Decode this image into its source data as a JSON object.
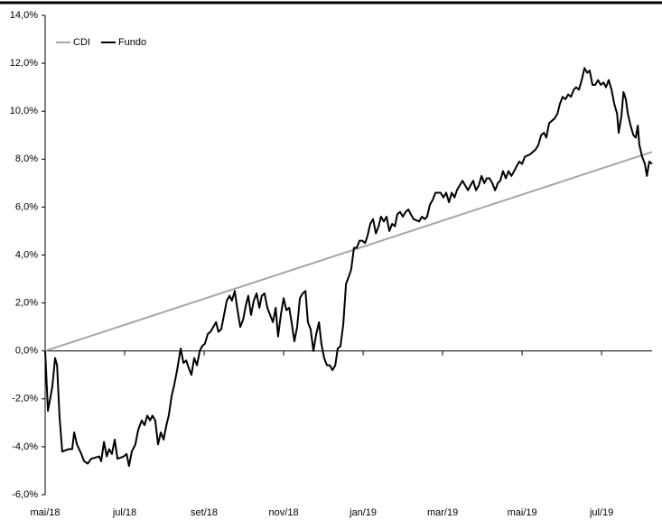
{
  "chart_data": {
    "type": "line",
    "xlim": [
      0,
      15.27
    ],
    "ylim": [
      -6,
      14
    ],
    "xticks": [
      {
        "value": 0,
        "label": "mai/18"
      },
      {
        "value": 2,
        "label": "jul/18"
      },
      {
        "value": 4,
        "label": "set/18"
      },
      {
        "value": 6,
        "label": "nov/18"
      },
      {
        "value": 8,
        "label": "jan/19"
      },
      {
        "value": 10,
        "label": "mar/19"
      },
      {
        "value": 12,
        "label": "mai/19"
      },
      {
        "value": 14,
        "label": "jul/19"
      }
    ],
    "yticks": [
      {
        "value": -6,
        "label": "-6,0%"
      },
      {
        "value": -4,
        "label": "-4,0%"
      },
      {
        "value": -2,
        "label": "-2,0%"
      },
      {
        "value": 0,
        "label": "0,0%"
      },
      {
        "value": 2,
        "label": "2,0%"
      },
      {
        "value": 4,
        "label": "4,0%"
      },
      {
        "value": 6,
        "label": "6,0%"
      },
      {
        "value": 8,
        "label": "8,0%"
      },
      {
        "value": 10,
        "label": "10,0%"
      },
      {
        "value": 12,
        "label": "12,0%"
      },
      {
        "value": 14,
        "label": "14,0%"
      }
    ],
    "legend": "top-left",
    "series": [
      {
        "name": "CDI",
        "color": "#a6a6a6",
        "x": [
          0,
          15.27
        ],
        "values": [
          0,
          8.3
        ]
      },
      {
        "name": "Fundo",
        "color": "#000000",
        "x": [
          0,
          0.07,
          0.18,
          0.25,
          0.3,
          0.36,
          0.43,
          0.59,
          0.68,
          0.73,
          0.8,
          0.91,
          0.98,
          1.07,
          1.16,
          1.36,
          1.41,
          1.48,
          1.55,
          1.61,
          1.68,
          1.75,
          1.82,
          1.98,
          2.05,
          2.11,
          2.18,
          2.27,
          2.34,
          2.43,
          2.5,
          2.57,
          2.64,
          2.7,
          2.77,
          2.84,
          2.91,
          2.98,
          3.05,
          3.11,
          3.18,
          3.25,
          3.32,
          3.41,
          3.48,
          3.55,
          3.61,
          3.68,
          3.75,
          3.82,
          3.89,
          3.95,
          4.02,
          4.09,
          4.16,
          4.23,
          4.3,
          4.36,
          4.43,
          4.5,
          4.57,
          4.64,
          4.7,
          4.77,
          4.84,
          4.91,
          4.98,
          5.05,
          5.11,
          5.18,
          5.25,
          5.32,
          5.39,
          5.45,
          5.52,
          5.59,
          5.66,
          5.73,
          5.8,
          5.86,
          5.93,
          6.0,
          6.07,
          6.14,
          6.2,
          6.27,
          6.34,
          6.41,
          6.48,
          6.55,
          6.61,
          6.68,
          6.75,
          6.82,
          6.89,
          6.95,
          7.02,
          7.09,
          7.16,
          7.23,
          7.3,
          7.36,
          7.43,
          7.5,
          7.57,
          7.64,
          7.7,
          7.77,
          7.84,
          7.91,
          7.98,
          8.05,
          8.11,
          8.18,
          8.25,
          8.32,
          8.39,
          8.45,
          8.52,
          8.59,
          8.66,
          8.73,
          8.8,
          8.86,
          8.93,
          9.0,
          9.07,
          9.14,
          9.2,
          9.27,
          9.41,
          9.48,
          9.55,
          9.61,
          9.68,
          9.75,
          9.82,
          9.89,
          9.95,
          10.02,
          10.09,
          10.16,
          10.23,
          10.3,
          10.36,
          10.43,
          10.5,
          10.57,
          10.64,
          10.7,
          10.77,
          10.84,
          10.91,
          10.98,
          11.05,
          11.11,
          11.18,
          11.25,
          11.32,
          11.39,
          11.45,
          11.52,
          11.59,
          11.66,
          11.73,
          11.8,
          11.86,
          11.93,
          12.0,
          12.07,
          12.2,
          12.34,
          12.41,
          12.48,
          12.55,
          12.61,
          12.68,
          12.75,
          12.82,
          12.89,
          12.95,
          13.02,
          13.09,
          13.16,
          13.23,
          13.3,
          13.36,
          13.43,
          13.5,
          13.57,
          13.64,
          13.7,
          13.77,
          13.84,
          13.91,
          13.98,
          14.05,
          14.11,
          14.18,
          14.25,
          14.32,
          14.39,
          14.43,
          14.5,
          14.55,
          14.61,
          14.66,
          14.73,
          14.8,
          14.86,
          14.91,
          14.95,
          15.02,
          15.09,
          15.14,
          15.2,
          15.27
        ],
        "values": [
          0,
          -2.5,
          -1.5,
          -0.3,
          -0.6,
          -2.7,
          -4.2,
          -4.1,
          -4.1,
          -3.4,
          -3.9,
          -4.3,
          -4.6,
          -4.7,
          -4.5,
          -4.4,
          -4.6,
          -3.8,
          -4.4,
          -4.1,
          -4.3,
          -3.7,
          -4.5,
          -4.4,
          -4.3,
          -4.8,
          -4.2,
          -3.9,
          -3.3,
          -2.9,
          -3.1,
          -2.7,
          -2.9,
          -2.7,
          -2.9,
          -3.9,
          -3.4,
          -3.7,
          -3.1,
          -2.7,
          -1.9,
          -1.4,
          -0.8,
          0.1,
          -0.5,
          -0.4,
          -0.7,
          -1.0,
          -0.3,
          -0.6,
          0.0,
          0.2,
          0.3,
          0.7,
          0.8,
          1.0,
          1.2,
          0.8,
          0.9,
          1.5,
          2.1,
          2.3,
          2.1,
          2.5,
          1.7,
          1.0,
          1.3,
          1.9,
          2.3,
          1.5,
          2.1,
          2.4,
          1.8,
          2.3,
          2.4,
          1.8,
          1.5,
          1.2,
          1.8,
          0.6,
          1.5,
          2.2,
          1.7,
          1.8,
          1.2,
          0.4,
          1.0,
          2.2,
          2.4,
          2.5,
          1.2,
          0.9,
          0.0,
          0.7,
          1.2,
          0.3,
          -0.3,
          -0.6,
          -0.6,
          -0.8,
          -0.6,
          0.1,
          0.2,
          1.1,
          2.8,
          3.1,
          3.4,
          4.3,
          4.3,
          4.6,
          4.6,
          4.5,
          4.8,
          5.3,
          5.5,
          4.9,
          5.2,
          5.6,
          5.4,
          5.6,
          5.0,
          5.3,
          5.2,
          5.7,
          5.8,
          5.6,
          5.8,
          5.9,
          5.7,
          5.5,
          5.4,
          5.6,
          5.5,
          5.6,
          6.1,
          6.3,
          6.6,
          6.6,
          6.6,
          6.4,
          6.6,
          6.2,
          6.6,
          6.4,
          6.7,
          6.9,
          7.1,
          6.9,
          6.7,
          6.9,
          7.1,
          6.7,
          6.9,
          7.3,
          7.0,
          7.2,
          7.2,
          7.0,
          6.7,
          7.0,
          7.1,
          7.5,
          7.2,
          7.5,
          7.3,
          7.5,
          7.7,
          7.9,
          7.8,
          8.1,
          8.2,
          8.4,
          8.6,
          9.0,
          9.1,
          8.9,
          9.5,
          9.6,
          9.7,
          9.9,
          10.3,
          10.6,
          10.5,
          10.7,
          10.6,
          10.9,
          11.0,
          10.9,
          11.3,
          11.8,
          11.6,
          11.7,
          11.1,
          11.1,
          11.3,
          11.1,
          11.2,
          11.0,
          11.3,
          10.9,
          10.3,
          9.9,
          9.1,
          9.8,
          10.8,
          10.5,
          9.9,
          9.4,
          9.0,
          8.9,
          9.4,
          8.6,
          8.1,
          7.8,
          7.3,
          7.9,
          7.8
        ]
      }
    ]
  }
}
